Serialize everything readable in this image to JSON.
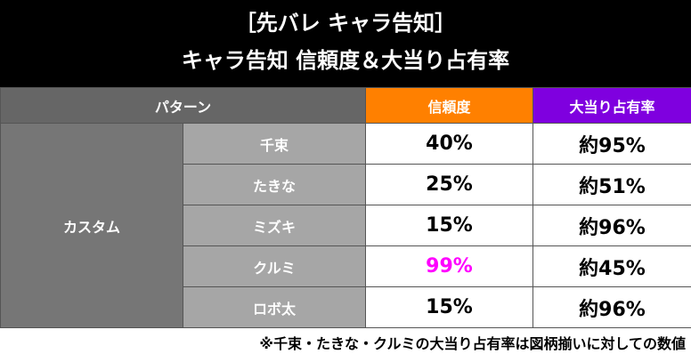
{
  "header": {
    "line1": "［先バレ キャラ告知］",
    "line2": "キャラ告知 信頼度＆大当り占有率"
  },
  "table": {
    "headers": {
      "pattern": "パターン",
      "trust": "信頼度",
      "share": "大当り占有率"
    },
    "group": "カスタム",
    "rows": [
      {
        "name": "千束",
        "trust": "40%",
        "share": "約95%"
      },
      {
        "name": "たきな",
        "trust": "25%",
        "share": "約51%"
      },
      {
        "name": "ミズキ",
        "trust": "15%",
        "share": "約96%"
      },
      {
        "name": "クルミ",
        "trust": "99%",
        "share": "約45%"
      },
      {
        "name": "ロボ太",
        "trust": "15%",
        "share": "約96%"
      }
    ]
  },
  "note": "※千束・たきな・クルミの大当り占有率は図柄揃いに対しての数値",
  "colors": {
    "header_bg": "#000000",
    "trust_header": "#ff8000",
    "share_header": "#7f00df",
    "highlight_text": "#ff00ff"
  }
}
